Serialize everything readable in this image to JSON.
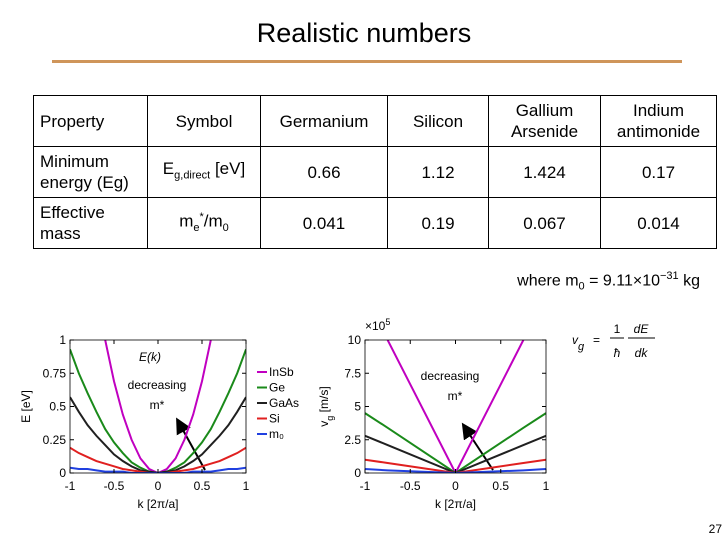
{
  "title": "Realistic numbers",
  "table": {
    "header": [
      "Property",
      "Symbol",
      "Germanium",
      "Silicon",
      "Gallium Arsenide",
      "Indium antimonide"
    ],
    "rows": [
      [
        "Minimum energy (Eg)",
        [
          {
            "t": "E"
          },
          {
            "t": "g,direct",
            "s": "sub"
          },
          {
            "t": " [eV]"
          }
        ],
        "0.66",
        "1.12",
        "1.424",
        "0.17"
      ],
      [
        "Effective mass",
        [
          {
            "t": "m"
          },
          {
            "t": "e",
            "s": "sub"
          },
          {
            "t": "*",
            "s": "sup"
          },
          {
            "t": "/m"
          },
          {
            "t": "0",
            "s": "sub"
          }
        ],
        "0.041",
        "0.19",
        "0.067",
        "0.014"
      ]
    ]
  },
  "note": [
    {
      "t": "where m"
    },
    {
      "t": "0",
      "s": "sub"
    },
    {
      "t": " = 9.11×10"
    },
    {
      "t": "−31",
      "s": "sup"
    },
    {
      "t": " kg"
    }
  ],
  "formula": {
    "lhs": "v",
    "lhs_sub": "g",
    "eq": "=",
    "num1": "1",
    "den1": "ħ",
    "num2": "dE",
    "den2": "dk"
  },
  "page_number": "27",
  "chart_data": [
    {
      "type": "line",
      "xlabel": "k [2π/a]",
      "ylabel": "E [eV]",
      "xlim": [
        -1,
        1
      ],
      "ylim": [
        0,
        1
      ],
      "xticks": [
        -1,
        -0.5,
        0,
        0.5,
        1
      ],
      "yticks": [
        0,
        0.25,
        0.5,
        0.75,
        1
      ],
      "x": [
        -1,
        -0.9,
        -0.8,
        -0.7,
        -0.6,
        -0.5,
        -0.4,
        -0.3,
        -0.2,
        -0.1,
        0,
        0.1,
        0.2,
        0.3,
        0.4,
        0.5,
        0.6,
        0.7,
        0.8,
        0.9,
        1
      ],
      "series": [
        {
          "name": "InSb",
          "color": "#c000c0",
          "values": [
            null,
            null,
            null,
            null,
            1.0,
            0.69,
            0.44,
            0.25,
            0.11,
            0.03,
            0,
            0.03,
            0.11,
            0.25,
            0.44,
            0.69,
            1.0,
            null,
            null,
            null,
            null
          ]
        },
        {
          "name": "Ge",
          "color": "#1a8a1a",
          "values": [
            0.93,
            0.75,
            0.6,
            0.46,
            0.33,
            0.23,
            0.15,
            0.08,
            0.04,
            0.01,
            0,
            0.01,
            0.04,
            0.08,
            0.15,
            0.23,
            0.33,
            0.46,
            0.6,
            0.75,
            0.93
          ]
        },
        {
          "name": "GaAs",
          "color": "#202020",
          "values": [
            0.57,
            0.46,
            0.36,
            0.28,
            0.21,
            0.14,
            0.09,
            0.05,
            0.02,
            0.01,
            0,
            0.01,
            0.02,
            0.05,
            0.09,
            0.14,
            0.21,
            0.28,
            0.36,
            0.46,
            0.57
          ]
        },
        {
          "name": "Si",
          "color": "#e02020",
          "values": [
            0.19,
            0.15,
            0.12,
            0.09,
            0.07,
            0.05,
            0.03,
            0.02,
            0.01,
            0,
            0,
            0,
            0.01,
            0.02,
            0.03,
            0.05,
            0.07,
            0.09,
            0.12,
            0.15,
            0.19
          ]
        },
        {
          "name": "m₀",
          "color": "#2040e0",
          "values": [
            0.04,
            0.03,
            0.03,
            0.02,
            0.01,
            0.01,
            0.01,
            0,
            0,
            0,
            0,
            0,
            0,
            0,
            0.01,
            0.01,
            0.01,
            0.02,
            0.03,
            0.03,
            0.04
          ]
        }
      ],
      "legend": "right-outside",
      "annotations": [
        "E(k)",
        "decreasing",
        "m*"
      ]
    },
    {
      "type": "line",
      "xlabel": "k [2π/a]",
      "ylabel": [
        {
          "t": "v"
        },
        {
          "t": "g",
          "s": "sub"
        },
        {
          "t": " [m/s]"
        }
      ],
      "y_multiplier": [
        {
          "t": "×10"
        },
        {
          "t": "5",
          "s": "sup"
        }
      ],
      "xlim": [
        -1,
        1
      ],
      "ylim": [
        0,
        10
      ],
      "xticks": [
        -1,
        -0.5,
        0,
        0.5,
        1
      ],
      "yticks": [
        0,
        2.5,
        5,
        7.5,
        10
      ],
      "x": [
        -1,
        -0.75,
        0,
        0.75,
        1
      ],
      "series": [
        {
          "name": "InSb",
          "color": "#c000c0",
          "values": [
            null,
            10,
            0,
            10,
            null
          ]
        },
        {
          "name": "Ge",
          "color": "#1a8a1a",
          "values": [
            4.5,
            3.4,
            0,
            3.4,
            4.5
          ]
        },
        {
          "name": "GaAs",
          "color": "#202020",
          "values": [
            2.8,
            2.1,
            0,
            2.1,
            2.8
          ]
        },
        {
          "name": "Si",
          "color": "#e02020",
          "values": [
            1.0,
            0.75,
            0,
            0.75,
            1.0
          ]
        },
        {
          "name": "m₀",
          "color": "#2040e0",
          "values": [
            0.3,
            0.2,
            0,
            0.2,
            0.3
          ]
        }
      ],
      "annotations": [
        "decreasing",
        "m*"
      ]
    }
  ]
}
